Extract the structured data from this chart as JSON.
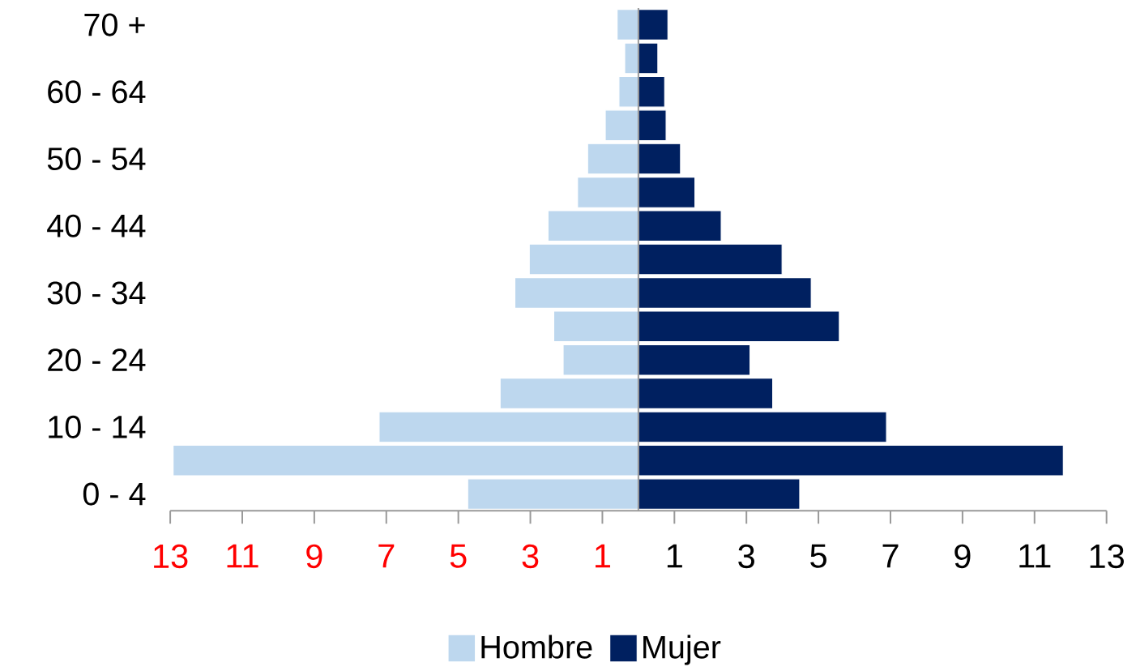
{
  "chart_data": {
    "type": "bar",
    "orientation": "horizontal",
    "categories": [
      "70 +",
      null,
      "60 - 64",
      null,
      "50 - 54",
      null,
      "40 - 44",
      null,
      "30 - 34",
      null,
      "20 - 24",
      null,
      "10 - 14",
      null,
      "0 - 4"
    ],
    "series": [
      {
        "name": "Hombre",
        "color": "#bdd7ee",
        "values": [
          -0.59,
          -0.38,
          -0.54,
          -0.92,
          -1.41,
          -1.69,
          -2.51,
          -3.03,
          -3.43,
          -2.35,
          -2.09,
          -3.84,
          -7.2,
          -12.92,
          -4.74
        ]
      },
      {
        "name": "Mujer",
        "color": "#002060",
        "values": [
          0.82,
          0.54,
          0.73,
          0.77,
          1.17,
          1.57,
          2.3,
          3.99,
          4.8,
          5.58,
          3.1,
          3.73,
          6.89,
          11.8,
          4.48
        ]
      }
    ],
    "xlim": [
      -13,
      13
    ],
    "xticks": [
      {
        "value": -13,
        "label": "13"
      },
      {
        "value": -11,
        "label": "11"
      },
      {
        "value": -9,
        "label": "9"
      },
      {
        "value": -7,
        "label": "7"
      },
      {
        "value": -5,
        "label": "5"
      },
      {
        "value": -3,
        "label": "3"
      },
      {
        "value": -1,
        "label": "1"
      },
      1,
      3,
      5,
      7,
      9,
      11,
      13
    ],
    "stacked": true,
    "legend": "bottom"
  }
}
